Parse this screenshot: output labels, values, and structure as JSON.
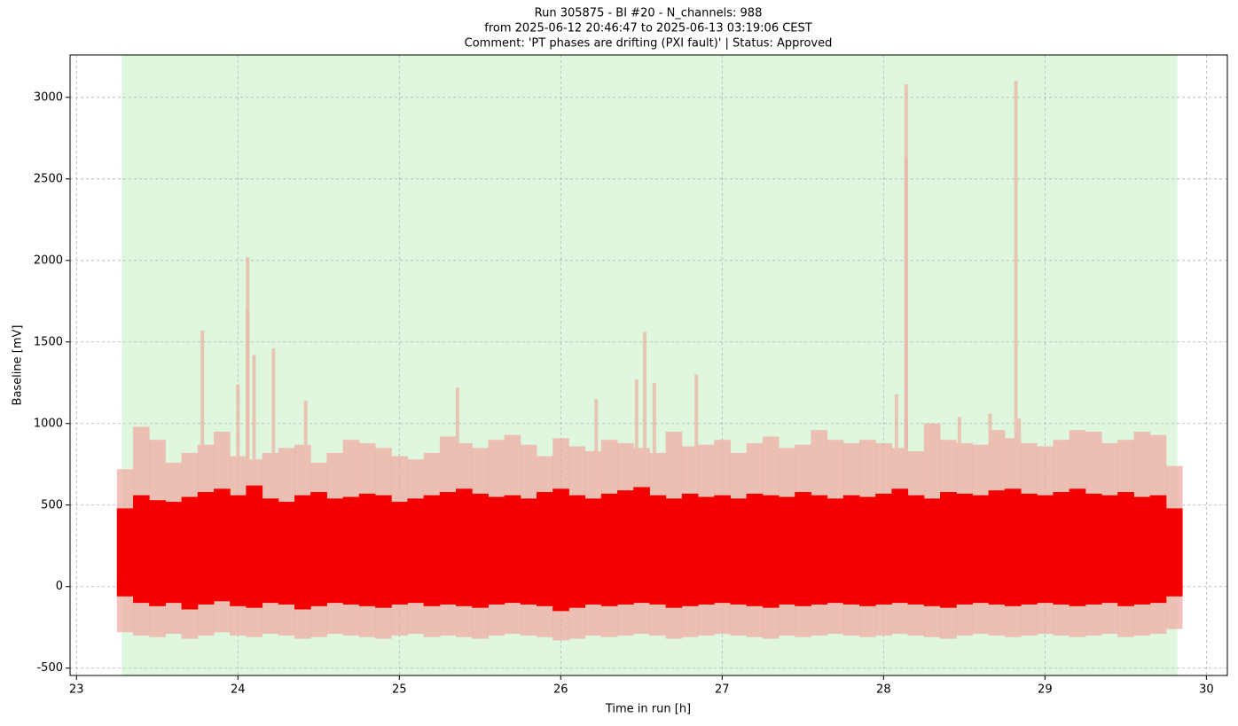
{
  "chart_data": {
    "type": "band",
    "title": [
      "Run 305875  -  BI #20  -  N_channels: 988",
      "from  2025-06-12 20:46:47  to  2025-06-13 03:19:06 CEST",
      "Comment: 'PT phases are drifting (PXI fault)' | Status: Approved"
    ],
    "x_label": "Time in run [h]",
    "y_label": "Baseline [mV]",
    "xlim": [
      22.96,
      30.13
    ],
    "ylim": [
      -545,
      3260
    ],
    "xticks": [
      23,
      24,
      25,
      26,
      27,
      28,
      29,
      30
    ],
    "yticks": [
      -500,
      0,
      500,
      1000,
      1500,
      2000,
      2500,
      3000
    ],
    "grid": true,
    "span": {
      "x": [
        23.28,
        29.82
      ],
      "color": "#dff7df"
    },
    "x": [
      23.3,
      23.4,
      23.5,
      23.6,
      23.7,
      23.8,
      23.9,
      24.0,
      24.1,
      24.2,
      24.3,
      24.4,
      24.5,
      24.6,
      24.7,
      24.8,
      24.9,
      25.0,
      25.1,
      25.2,
      25.3,
      25.4,
      25.5,
      25.6,
      25.7,
      25.8,
      25.9,
      26.0,
      26.1,
      26.2,
      26.3,
      26.4,
      26.5,
      26.6,
      26.7,
      26.8,
      26.9,
      27.0,
      27.1,
      27.2,
      27.3,
      27.4,
      27.5,
      27.6,
      27.7,
      27.8,
      27.9,
      28.0,
      28.1,
      28.2,
      28.3,
      28.4,
      28.5,
      28.6,
      28.7,
      28.8,
      28.9,
      29.0,
      29.1,
      29.2,
      29.3,
      29.4,
      29.5,
      29.6,
      29.7,
      29.8
    ],
    "bands": [
      {
        "color": "#f0a8a0",
        "opacity": 0.7,
        "upper": [
          720,
          980,
          900,
          760,
          820,
          870,
          950,
          800,
          780,
          820,
          850,
          870,
          760,
          820,
          900,
          880,
          850,
          800,
          780,
          820,
          920,
          880,
          850,
          900,
          930,
          870,
          800,
          910,
          860,
          830,
          900,
          880,
          850,
          820,
          950,
          860,
          870,
          900,
          820,
          880,
          920,
          850,
          870,
          960,
          900,
          880,
          900,
          880,
          850,
          830,
          1000,
          900,
          880,
          870,
          960,
          910,
          880,
          860,
          900,
          960,
          950,
          880,
          900,
          950,
          930,
          740
        ],
        "lower": [
          -280,
          -300,
          -310,
          -290,
          -320,
          -300,
          -280,
          -300,
          -310,
          -290,
          -300,
          -320,
          -310,
          -290,
          -300,
          -310,
          -320,
          -300,
          -290,
          -310,
          -300,
          -310,
          -320,
          -300,
          -290,
          -300,
          -310,
          -330,
          -320,
          -300,
          -310,
          -300,
          -290,
          -300,
          -320,
          -310,
          -300,
          -290,
          -300,
          -310,
          -320,
          -300,
          -310,
          -300,
          -290,
          -300,
          -310,
          -300,
          -290,
          -300,
          -310,
          -320,
          -300,
          -290,
          -300,
          -310,
          -300,
          -290,
          -300,
          -310,
          -300,
          -290,
          -310,
          -300,
          -290,
          -260
        ]
      },
      {
        "color": "#f50000",
        "opacity": 1,
        "upper": [
          480,
          560,
          530,
          520,
          550,
          580,
          600,
          560,
          620,
          540,
          520,
          560,
          580,
          540,
          550,
          570,
          560,
          520,
          540,
          560,
          580,
          600,
          570,
          550,
          560,
          540,
          580,
          600,
          560,
          540,
          570,
          590,
          610,
          560,
          540,
          570,
          550,
          560,
          540,
          570,
          560,
          550,
          580,
          560,
          540,
          560,
          550,
          570,
          600,
          560,
          540,
          580,
          570,
          560,
          590,
          600,
          570,
          560,
          580,
          600,
          570,
          560,
          580,
          550,
          560,
          480
        ],
        "lower": [
          -60,
          -100,
          -120,
          -100,
          -140,
          -110,
          -90,
          -120,
          -130,
          -100,
          -110,
          -140,
          -120,
          -100,
          -110,
          -120,
          -130,
          -110,
          -100,
          -120,
          -110,
          -120,
          -130,
          -110,
          -100,
          -110,
          -120,
          -150,
          -130,
          -110,
          -120,
          -110,
          -100,
          -110,
          -130,
          -120,
          -110,
          -100,
          -110,
          -120,
          -130,
          -110,
          -120,
          -110,
          -100,
          -110,
          -120,
          -110,
          -100,
          -110,
          -120,
          -130,
          -110,
          -100,
          -110,
          -120,
          -110,
          -100,
          -110,
          -120,
          -110,
          -100,
          -120,
          -110,
          -100,
          -60
        ]
      }
    ],
    "spikes": {
      "color": "#e8b8a8",
      "x": [
        23.78,
        24.0,
        24.06,
        24.06,
        24.1,
        24.22,
        24.42,
        25.36,
        26.22,
        26.47,
        26.52,
        26.58,
        26.84,
        28.08,
        28.14,
        28.14,
        28.14,
        28.47,
        28.66,
        28.82,
        28.84
      ],
      "values": [
        1570,
        1240,
        2020,
        1700,
        1420,
        1460,
        1140,
        1220,
        1150,
        1270,
        1560,
        1250,
        1300,
        1180,
        3080,
        2630,
        1040,
        1040,
        1060,
        3100,
        1030
      ]
    }
  }
}
